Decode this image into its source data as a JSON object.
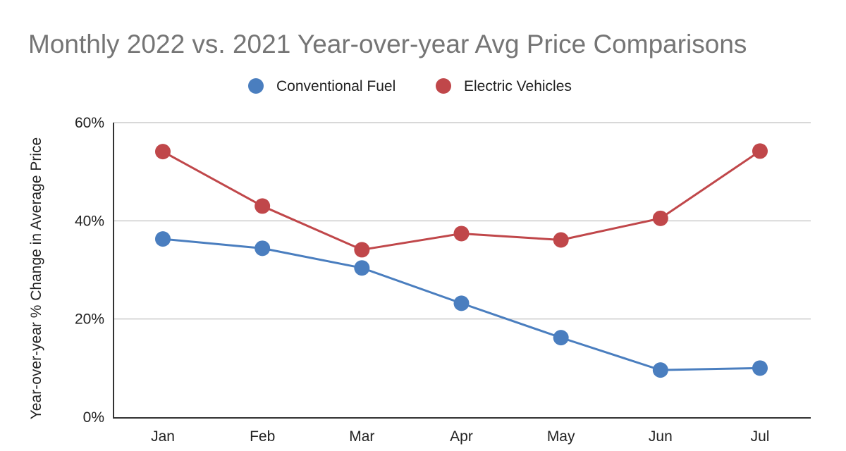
{
  "chart_data": {
    "type": "line",
    "title": "Monthly 2022 vs. 2021 Year-over-year Avg Price Comparisons",
    "xlabel": "",
    "ylabel": "Year-over-year % Change in Average Price",
    "categories": [
      "Jan",
      "Feb",
      "Mar",
      "Apr",
      "May",
      "Jun",
      "Jul"
    ],
    "y_ticks": [
      0,
      20,
      40,
      60
    ],
    "y_tick_labels": [
      "0%",
      "20%",
      "40%",
      "60%"
    ],
    "ylim": [
      0,
      60
    ],
    "grid": true,
    "legend_position": "top-center",
    "series": [
      {
        "name": "Conventional Fuel",
        "color": "#4a7ebf",
        "values": [
          36.3,
          34.4,
          30.4,
          23.2,
          16.2,
          9.6,
          10.0
        ]
      },
      {
        "name": "Electric Vehicles",
        "color": "#c0474a",
        "values": [
          54.1,
          43.0,
          34.1,
          37.4,
          36.1,
          40.5,
          54.2
        ]
      }
    ]
  }
}
